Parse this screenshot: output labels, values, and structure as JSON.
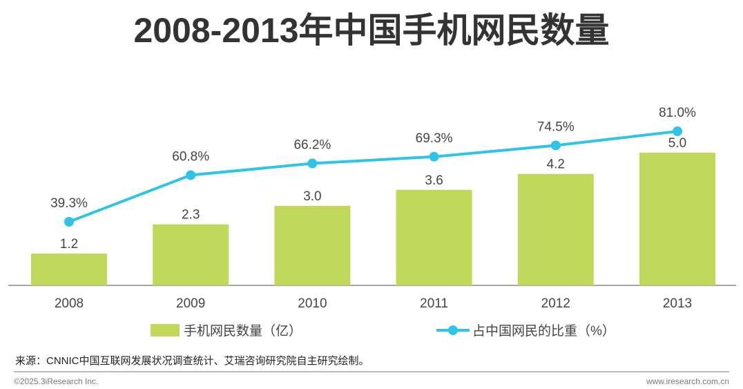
{
  "chart_data": {
    "type": "bar",
    "title": "2008-2013年中国手机网民数量",
    "categories": [
      "2008",
      "2009",
      "2010",
      "2011",
      "2012",
      "2013"
    ],
    "series": [
      {
        "name": "手机网民数量（亿）",
        "type": "bar",
        "values": [
          1.2,
          2.3,
          3.0,
          3.6,
          4.2,
          5.0
        ],
        "labels": [
          "1.2",
          "2.3",
          "3.0",
          "3.6",
          "4.2",
          "5.0"
        ],
        "color": "#c1d95a"
      },
      {
        "name": "占中国网民的比重（%）",
        "type": "line",
        "values": [
          39.3,
          60.8,
          66.2,
          69.3,
          74.5,
          81.0
        ],
        "labels": [
          "39.3%",
          "60.8%",
          "66.2%",
          "69.3%",
          "74.5%",
          "81.0%"
        ],
        "color": "#2ec4e6"
      }
    ],
    "legend": "bottom"
  },
  "source": "来源：CNNIC中国互联网发展状况调查统计、艾瑞咨询研究院自主研究绘制。",
  "copyright": "©2025.3iResearch Inc.",
  "website": "www.iresearch.com.cn"
}
